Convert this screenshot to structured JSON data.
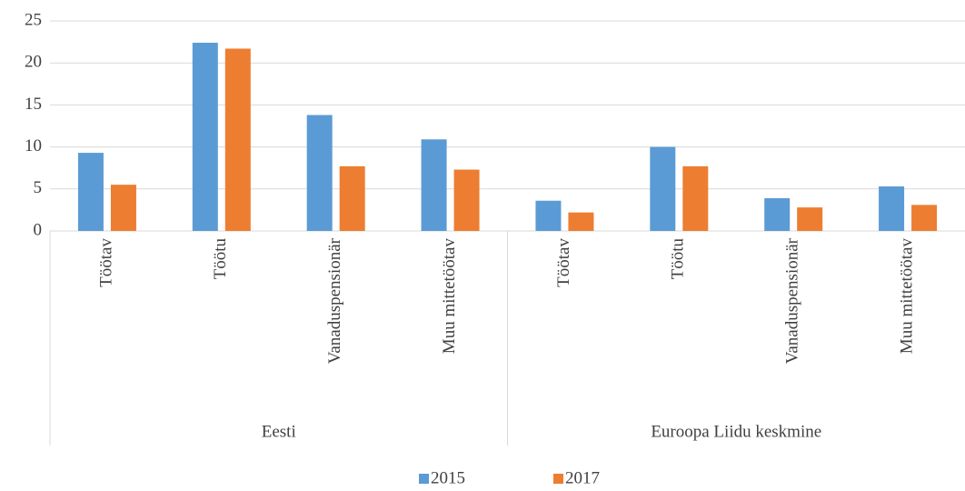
{
  "chart_data": {
    "type": "bar",
    "categories": [
      "Töötav",
      "Töötu",
      "Vanaduspensionär",
      "Muu mittetöötav",
      "Töötav",
      "Töötu",
      "Vanaduspensionär",
      "Muu mittetöötav"
    ],
    "groups": [
      "Eesti",
      "Euroopa Liidu keskmine"
    ],
    "series": [
      {
        "name": "2015",
        "color": "#5b9bd5",
        "values": [
          9.3,
          22.4,
          13.8,
          10.9,
          3.6,
          10.0,
          3.9,
          5.3
        ]
      },
      {
        "name": "2017",
        "color": "#ed7d31",
        "values": [
          5.5,
          21.7,
          7.7,
          7.3,
          2.2,
          7.7,
          2.8,
          3.1
        ]
      }
    ],
    "ylim": [
      0,
      25
    ],
    "yticks": [
      0,
      5,
      10,
      15,
      20,
      25
    ],
    "grid": true,
    "legend": "bottom"
  }
}
